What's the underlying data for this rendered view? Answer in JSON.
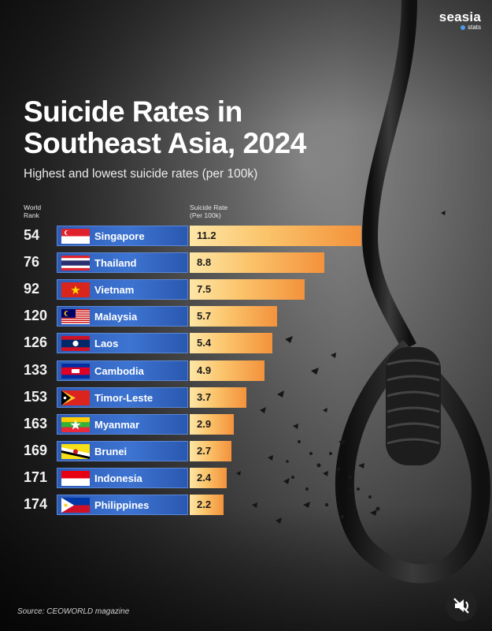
{
  "brand": {
    "name": "seasia",
    "sub": "stats"
  },
  "header": {
    "title_line1": "Suicide Rates in",
    "title_line2": "Southeast Asia, 2024",
    "subtitle": "Highest and lowest suicide rates (per 100k)",
    "rank_label_1": "World",
    "rank_label_2": "Rank",
    "rate_label_1": "Suicide Rate",
    "rate_label_2": "(Per 100k)"
  },
  "chart_data": {
    "type": "bar",
    "orientation": "horizontal",
    "title": "Suicide Rates in Southeast Asia, 2024",
    "subtitle": "Highest and lowest suicide rates (per 100k)",
    "categories": [
      "Singapore",
      "Thailand",
      "Vietnam",
      "Malaysia",
      "Laos",
      "Cambodia",
      "Timor-Leste",
      "Myanmar",
      "Brunei",
      "Indonesia",
      "Philippines"
    ],
    "world_rank": [
      "54",
      "76",
      "92",
      "120",
      "126",
      "133",
      "153",
      "163",
      "169",
      "171",
      "174"
    ],
    "values": [
      11.2,
      8.8,
      7.5,
      5.7,
      5.4,
      4.9,
      3.7,
      2.9,
      2.7,
      2.4,
      2.2
    ],
    "value_labels": [
      "11.2",
      "8.8",
      "7.5",
      "5.7",
      "5.4",
      "4.9",
      "3.7",
      "2.9",
      "2.7",
      "2.4",
      "2.2"
    ],
    "xlim": [
      0,
      11.2
    ],
    "grid": false,
    "legend": "none",
    "bar_colors": {
      "start": "#fde6a6",
      "end": "#f3923c"
    },
    "label_panel_color": "#3d74d2"
  },
  "flags": [
    "singapore-flag-icon",
    "thailand-flag-icon",
    "vietnam-flag-icon",
    "malaysia-flag-icon",
    "laos-flag-icon",
    "cambodia-flag-icon",
    "timor-leste-flag-icon",
    "myanmar-flag-icon",
    "brunei-flag-icon",
    "indonesia-flag-icon",
    "philippines-flag-icon"
  ],
  "footer": {
    "source": "Source: CEOWORLD magazine"
  },
  "controls": {
    "mute_icon": "mute-icon"
  }
}
